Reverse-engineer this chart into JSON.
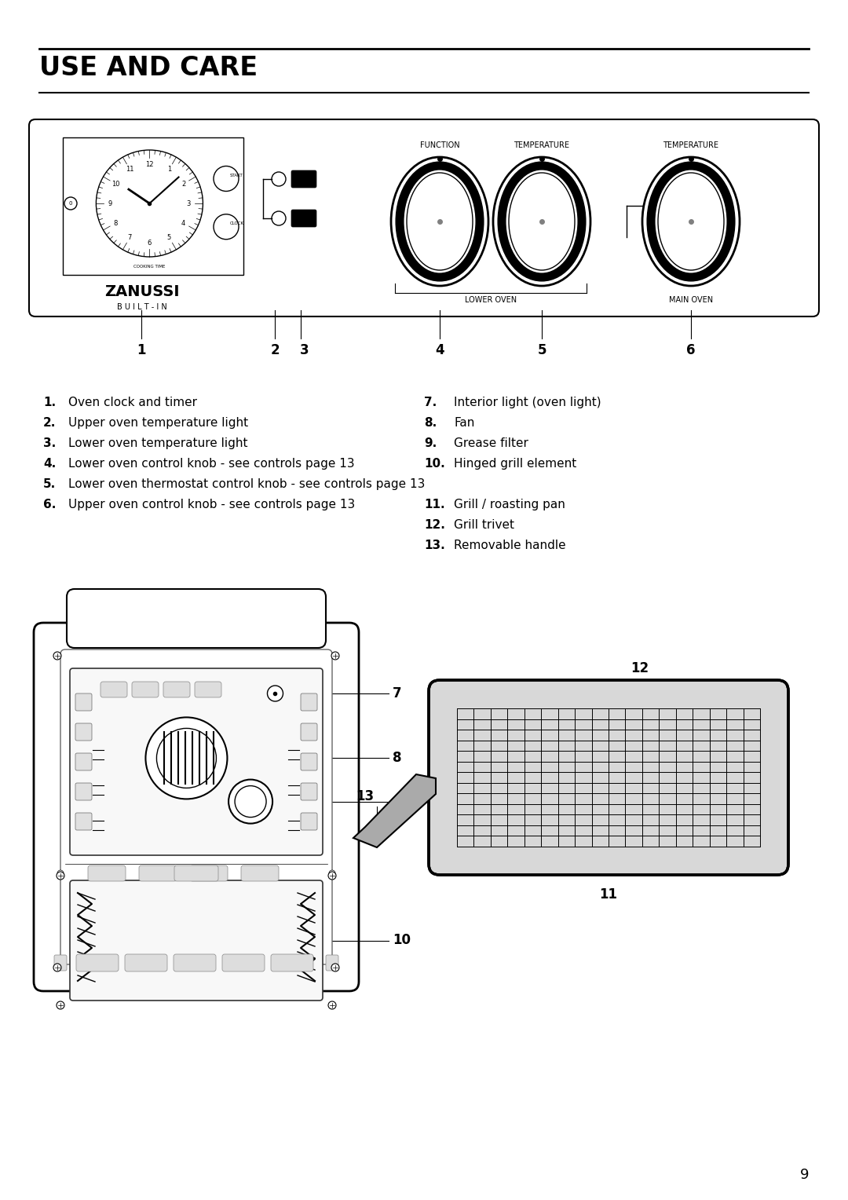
{
  "title": "USE AND CARE",
  "bg_color": "#ffffff",
  "text_color": "#000000",
  "list_left": [
    {
      "num": "1.",
      "text": "Oven clock and timer"
    },
    {
      "num": "2.",
      "text": "Upper oven temperature light"
    },
    {
      "num": "3.",
      "text": "Lower oven temperature light"
    },
    {
      "num": "4.",
      "text": "Lower oven control knob - see controls page 13"
    },
    {
      "num": "5.",
      "text": "Lower oven thermostat control knob - see controls page 13"
    },
    {
      "num": "6.",
      "text": "Upper oven control knob - see controls page 13"
    }
  ],
  "list_right_top": [
    {
      "num": "7.",
      "text": "Interior light (oven light)"
    },
    {
      "num": "8.",
      "text": "Fan"
    },
    {
      "num": "9.",
      "text": "Grease filter"
    },
    {
      "num": "10.",
      "text": "Hinged grill element"
    }
  ],
  "list_right_bot": [
    {
      "num": "11.",
      "text": "Grill / roasting pan"
    },
    {
      "num": "12.",
      "text": "Grill trivet"
    },
    {
      "num": "13.",
      "text": "Removable handle"
    }
  ],
  "page_number": "9"
}
